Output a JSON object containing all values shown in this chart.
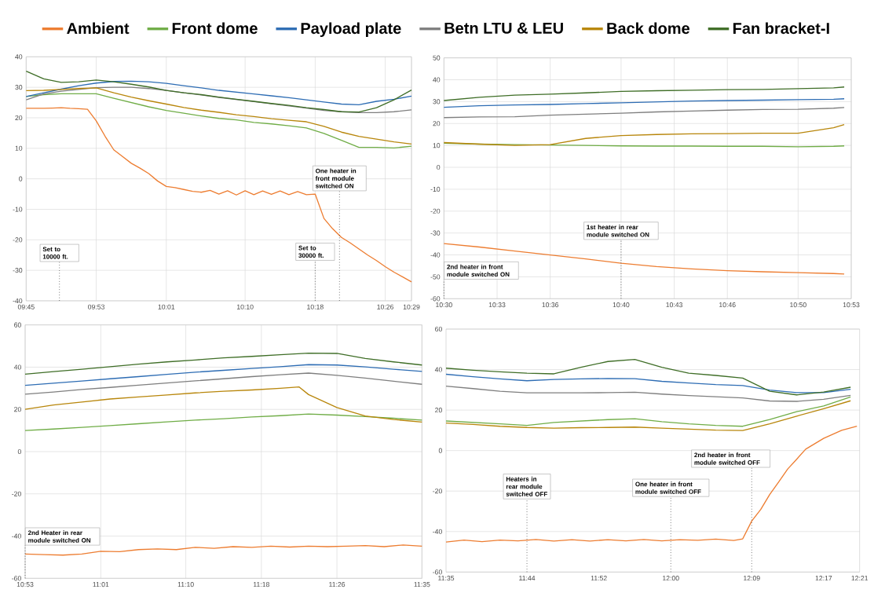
{
  "chart_data": [
    {
      "type": "line",
      "marker": "none",
      "grid": true,
      "legend": "top",
      "xlim": [
        9.75,
        10.4833
      ],
      "ylim": [
        -40,
        40
      ],
      "yticks": [
        -40,
        -30,
        -20,
        -10,
        0,
        10,
        20,
        30,
        40
      ],
      "xticks": [
        {
          "value": 9.75,
          "label": "09:45"
        },
        {
          "value": 9.8833,
          "label": "09:53"
        },
        {
          "value": 10.0167,
          "label": "10:01"
        },
        {
          "value": 10.1667,
          "label": "10:10"
        },
        {
          "value": 10.3,
          "label": "10:18"
        },
        {
          "value": 10.4333,
          "label": "10:26"
        },
        {
          "value": 10.4833,
          "label": "10:29"
        }
      ],
      "x": [
        9.75,
        9.7833,
        9.8167,
        9.85,
        9.8833,
        9.9167,
        9.95,
        9.9833,
        10.0167,
        10.05,
        10.0833,
        10.1167,
        10.15,
        10.1833,
        10.2167,
        10.25,
        10.2833,
        10.3167,
        10.35,
        10.3833,
        10.4167,
        10.45,
        10.4833
      ],
      "series": [
        {
          "name": "Ambient",
          "color": "#ed7d31",
          "x": [
            9.75,
            9.7667,
            9.7833,
            9.8,
            9.8167,
            9.8333,
            9.85,
            9.8667,
            9.8833,
            9.9,
            9.9167,
            9.9333,
            9.95,
            9.9667,
            9.9833,
            10,
            10.0167,
            10.0333,
            10.05,
            10.0667,
            10.0833,
            10.1,
            10.1167,
            10.1333,
            10.15,
            10.1667,
            10.1833,
            10.2,
            10.2167,
            10.2333,
            10.25,
            10.2667,
            10.2833,
            10.3,
            10.3167,
            10.3333,
            10.35,
            10.3667,
            10.3833,
            10.4,
            10.4167,
            10.4333,
            10.45,
            10.4667,
            10.4833
          ],
          "values": [
            23.1,
            23.1,
            23.1,
            23.2,
            23.3,
            23.1,
            23,
            22.8,
            19,
            14,
            9.5,
            7.3,
            5.1,
            3.5,
            1.7,
            -0.7,
            -2.5,
            -2.9,
            -3.5,
            -4.1,
            -4.4,
            -3.8,
            -5,
            -3.9,
            -5.3,
            -3.9,
            -5.2,
            -4,
            -5.1,
            -4,
            -5.2,
            -4.2,
            -5.2,
            -5,
            -13,
            -16.4,
            -19.2,
            -21,
            -23,
            -25,
            -26.8,
            -28.8,
            -30.6,
            -32.2,
            -33.8
          ]
        },
        {
          "name": "Front dome",
          "color": "#70ad47",
          "values": [
            27,
            27.6,
            27.9,
            27.9,
            27.9,
            26.4,
            25,
            23.6,
            22.4,
            21.5,
            20.6,
            19.8,
            19.3,
            18.5,
            18,
            17.4,
            16.7,
            14.9,
            12.6,
            10.3,
            10.3,
            10.1,
            10.7
          ]
        },
        {
          "name": "Payload plate",
          "color": "#2e6db4",
          "values": [
            27,
            28.2,
            29.4,
            30.5,
            31.4,
            31.9,
            32,
            31.8,
            31.3,
            30.5,
            29.8,
            29,
            28.4,
            27.8,
            27.2,
            26.6,
            25.9,
            25.2,
            24.5,
            24.3,
            25.4,
            26.1,
            27.1
          ]
        },
        {
          "name": "Betn LTU & LEU",
          "color": "#7f7f7f",
          "values": [
            25.9,
            27.8,
            28.7,
            29.3,
            29.9,
            30,
            30,
            29.6,
            29,
            28.2,
            27.5,
            26.7,
            26,
            25.3,
            24.6,
            23.9,
            23.2,
            22.4,
            22,
            21.7,
            21.7,
            22,
            22.6
          ]
        },
        {
          "name": "Back dome",
          "color": "#b8860b",
          "values": [
            28.9,
            29,
            29.3,
            29.6,
            29.8,
            28.2,
            26.8,
            25.6,
            24.5,
            23.4,
            22.5,
            21.8,
            21,
            20.4,
            19.7,
            19.2,
            18.7,
            17.2,
            15.3,
            13.9,
            13,
            12.1,
            11.4
          ]
        },
        {
          "name": "Fan bracket-I",
          "color": "#3f6e27",
          "values": [
            35.3,
            32.8,
            31.6,
            31.8,
            32.4,
            31.8,
            31,
            30.1,
            29,
            28.2,
            27.6,
            26.8,
            26.1,
            25.4,
            24.7,
            24.1,
            23.3,
            22.7,
            22,
            21.9,
            23.3,
            25.9,
            29.1
          ]
        }
      ],
      "ref_lines": [
        {
          "axis": "x",
          "value": 9.8133,
          "label": "Set to 10000 ft.",
          "line_style": "dotted"
        },
        {
          "axis": "x",
          "value": 10.3,
          "label": "Set to 30000 ft.",
          "line_style": "dotted"
        },
        {
          "axis": "x",
          "value": 10.3463,
          "label": "One heater in front module switched ON",
          "line_style": "dotted"
        }
      ]
    },
    {
      "type": "line",
      "marker": "none",
      "grid": true,
      "xlim": [
        10.5,
        10.8833
      ],
      "ylim": [
        -60,
        50
      ],
      "yticks": [
        -60,
        -50,
        -40,
        -30,
        -20,
        -10,
        0,
        10,
        20,
        30,
        40,
        50
      ],
      "xticks": [
        {
          "value": 10.5,
          "label": "10:30"
        },
        {
          "value": 10.55,
          "label": "10:33"
        },
        {
          "value": 10.6,
          "label": "10:36"
        },
        {
          "value": 10.6667,
          "label": "10:40"
        },
        {
          "value": 10.7167,
          "label": "10:43"
        },
        {
          "value": 10.7667,
          "label": "10:46"
        },
        {
          "value": 10.8333,
          "label": "10:50"
        },
        {
          "value": 10.8833,
          "label": "10:53"
        }
      ],
      "x": [
        10.5,
        10.5333,
        10.5667,
        10.6,
        10.6333,
        10.6667,
        10.7,
        10.7333,
        10.7667,
        10.8,
        10.8333,
        10.8667,
        10.8767
      ],
      "series": [
        {
          "color": "#ed7d31",
          "values": [
            -34.8,
            -36.4,
            -38.2,
            -40,
            -41.8,
            -43.8,
            -45.3,
            -46.4,
            -47.2,
            -47.7,
            -48.1,
            -48.5,
            -48.7
          ]
        },
        {
          "color": "#70ad47",
          "values": [
            11,
            10.6,
            10.4,
            10.2,
            10,
            9.8,
            9.7,
            9.7,
            9.6,
            9.6,
            9.4,
            9.6,
            9.8
          ]
        },
        {
          "color": "#2e6db4",
          "values": [
            27.4,
            28.1,
            28.5,
            28.7,
            29.1,
            29.5,
            29.9,
            30.3,
            30.5,
            30.7,
            30.9,
            31.1,
            31.3
          ]
        },
        {
          "color": "#7f7f7f",
          "values": [
            22.7,
            23,
            23.1,
            23.8,
            24.3,
            24.7,
            25.3,
            25.7,
            26.1,
            26.4,
            26.5,
            27,
            27.3
          ]
        },
        {
          "color": "#b8860b",
          "values": [
            11.3,
            10.6,
            10,
            10.4,
            13.2,
            14.5,
            15,
            15.3,
            15.4,
            15.6,
            15.6,
            18.1,
            19.5
          ]
        },
        {
          "color": "#3f6e27",
          "values": [
            30.5,
            32,
            33,
            33.4,
            34,
            34.7,
            35,
            35.2,
            35.5,
            35.6,
            35.9,
            36.3,
            36.7
          ]
        }
      ],
      "ref_lines": [
        {
          "axis": "x",
          "value": 10.5,
          "label": "2nd heater in front module switched ON",
          "line_style": "dotted"
        },
        {
          "axis": "x",
          "value": 10.6667,
          "label": "1st heater in rear module switched ON",
          "line_style": "dotted"
        }
      ]
    },
    {
      "type": "line",
      "marker": "none",
      "grid": true,
      "xlim": [
        10.8833,
        11.5833
      ],
      "ylim": [
        -60,
        60
      ],
      "yticks": [
        -60,
        -40,
        -20,
        0,
        20,
        40,
        60
      ],
      "xticks": [
        {
          "value": 10.8833,
          "label": "10:53"
        },
        {
          "value": 11.0167,
          "label": "11:01"
        },
        {
          "value": 11.1667,
          "label": "11:10"
        },
        {
          "value": 11.3,
          "label": "11:18"
        },
        {
          "value": 11.4333,
          "label": "11:26"
        },
        {
          "value": 11.5833,
          "label": "11:35"
        }
      ],
      "x": [
        10.8833,
        10.9333,
        10.9833,
        11.0333,
        11.0833,
        11.1333,
        11.1833,
        11.2333,
        11.2833,
        11.3333,
        11.3833,
        11.4333,
        11.4833,
        11.5333,
        11.5833
      ],
      "series": [
        {
          "color": "#ed7d31",
          "x": [
            10.8833,
            10.9167,
            10.95,
            10.9833,
            11.0167,
            11.05,
            11.0833,
            11.1167,
            11.15,
            11.1833,
            11.2167,
            11.25,
            11.2833,
            11.3167,
            11.35,
            11.3833,
            11.4167,
            11.45,
            11.4833,
            11.5167,
            11.55,
            11.5833
          ],
          "values": [
            -48.5,
            -48.8,
            -49,
            -48.5,
            -47.2,
            -47.4,
            -46.4,
            -46.1,
            -46.4,
            -45.3,
            -45.8,
            -45,
            -45.3,
            -44.8,
            -45.2,
            -44.8,
            -45,
            -44.8,
            -44.5,
            -45,
            -44.2,
            -44.8
          ]
        },
        {
          "color": "#70ad47",
          "values": [
            10,
            10.7,
            11.5,
            12.3,
            13.2,
            14.1,
            14.9,
            15.6,
            16.4,
            17,
            17.8,
            17.3,
            16.6,
            15.8,
            14.9
          ]
        },
        {
          "color": "#2e6db4",
          "values": [
            31.4,
            32.4,
            33.4,
            34.5,
            35.5,
            36.6,
            37.6,
            38.5,
            39.4,
            40.2,
            41.2,
            41,
            40.1,
            39,
            38
          ]
        },
        {
          "color": "#7f7f7f",
          "values": [
            27.2,
            28.2,
            29.4,
            30.4,
            31.5,
            32.5,
            33.5,
            34.5,
            35.5,
            36.4,
            37.2,
            36.1,
            34.8,
            33.3,
            31.9
          ]
        },
        {
          "color": "#b8860b",
          "x": [
            10.8833,
            10.9333,
            10.9833,
            11.0333,
            11.0833,
            11.1333,
            11.1833,
            11.2333,
            11.2833,
            11.3333,
            11.3667,
            11.3833,
            11.4333,
            11.4833,
            11.5333,
            11.5833
          ],
          "values": [
            20,
            22.1,
            23.5,
            24.9,
            25.9,
            26.8,
            27.8,
            28.6,
            29.2,
            30,
            30.6,
            27,
            20.9,
            16.9,
            15.2,
            14
          ]
        },
        {
          "color": "#3f6e27",
          "values": [
            36.7,
            37.9,
            39,
            40.2,
            41.4,
            42.5,
            43.4,
            44.4,
            45.1,
            45.9,
            46.6,
            46.5,
            44.1,
            42.5,
            41
          ]
        }
      ],
      "ref_lines": [
        {
          "axis": "x",
          "value": 10.8833,
          "label": "2nd Heater in rear module switched ON",
          "line_style": "dotted"
        }
      ]
    },
    {
      "type": "line",
      "marker": "none",
      "grid": "y",
      "xlim": [
        11.5833,
        12.35
      ],
      "ylim": [
        -60,
        60
      ],
      "yticks": [
        -60,
        -40,
        -20,
        0,
        20,
        40,
        60
      ],
      "xticks": [
        {
          "value": 11.5833,
          "label": "11:35"
        },
        {
          "value": 11.7333,
          "label": "11:44"
        },
        {
          "value": 11.8667,
          "label": "11:52"
        },
        {
          "value": 12,
          "label": "12:00"
        },
        {
          "value": 12.15,
          "label": "12:09"
        },
        {
          "value": 12.2833,
          "label": "12:17"
        },
        {
          "value": 12.35,
          "label": "12:21"
        }
      ],
      "x": [
        11.5833,
        11.6333,
        11.6833,
        11.7333,
        11.7833,
        11.8333,
        11.8833,
        11.9333,
        11.9833,
        12.0333,
        12.0833,
        12.1333,
        12.1833,
        12.2333,
        12.2833,
        12.3333
      ],
      "series": [
        {
          "color": "#ed7d31",
          "x": [
            11.5833,
            11.6167,
            11.65,
            11.6833,
            11.7167,
            11.75,
            11.7833,
            11.8167,
            11.85,
            11.8833,
            11.9167,
            11.95,
            11.9833,
            12.0167,
            12.05,
            12.0833,
            12.1167,
            12.1333,
            12.15,
            12.1667,
            12.1833,
            12.2,
            12.2167,
            12.2333,
            12.25,
            12.2833,
            12.3167,
            12.345
          ],
          "values": [
            -45.2,
            -44.2,
            -45,
            -44.2,
            -44.6,
            -43.9,
            -44.7,
            -44,
            -44.7,
            -44,
            -44.6,
            -43.9,
            -44.6,
            -44,
            -44.3,
            -43.7,
            -44.4,
            -43.6,
            -34.8,
            -29.1,
            -21.7,
            -15.5,
            -9.1,
            -4.3,
            0.7,
            6,
            10,
            12
          ]
        },
        {
          "color": "#70ad47",
          "values": [
            14.6,
            13.9,
            13.2,
            12.4,
            13.9,
            14.6,
            15.3,
            15.7,
            14.3,
            13.2,
            12.4,
            12,
            15.3,
            19.2,
            22,
            26.5
          ]
        },
        {
          "color": "#2e6db4",
          "values": [
            37.7,
            36.5,
            35.4,
            34.5,
            35.1,
            35.4,
            35.6,
            35.5,
            34.2,
            33.4,
            32.6,
            32.1,
            29.9,
            28.6,
            28.6,
            30.3
          ]
        },
        {
          "color": "#7f7f7f",
          "values": [
            31.8,
            30.6,
            29.3,
            28.5,
            28.5,
            28.5,
            28.6,
            28.8,
            27.9,
            27.2,
            26.6,
            26,
            24.5,
            24.3,
            25.3,
            27.3
          ]
        },
        {
          "color": "#b8860b",
          "values": [
            13.6,
            12.9,
            12,
            11.4,
            11.1,
            11.3,
            11.4,
            11.6,
            11.1,
            10.6,
            10.1,
            9.9,
            13.2,
            17,
            20.7,
            24.6
          ]
        },
        {
          "color": "#3f6e27",
          "values": [
            40.7,
            39.7,
            38.9,
            38.2,
            37.9,
            41.1,
            44,
            45,
            41.1,
            38.2,
            37.1,
            35.8,
            29.3,
            27.5,
            28.9,
            31.3
          ]
        }
      ],
      "ref_lines": [
        {
          "axis": "x",
          "value": 11.7333,
          "label": "Heaters in rear module switched OFF",
          "line_style": "dotted"
        },
        {
          "axis": "x",
          "value": 12,
          "label": "One heater in front module switched OFF",
          "line_style": "dotted"
        },
        {
          "axis": "x",
          "value": 12.15,
          "label": "2nd heater in front module switched OFF",
          "line_style": "dotted"
        }
      ]
    }
  ]
}
